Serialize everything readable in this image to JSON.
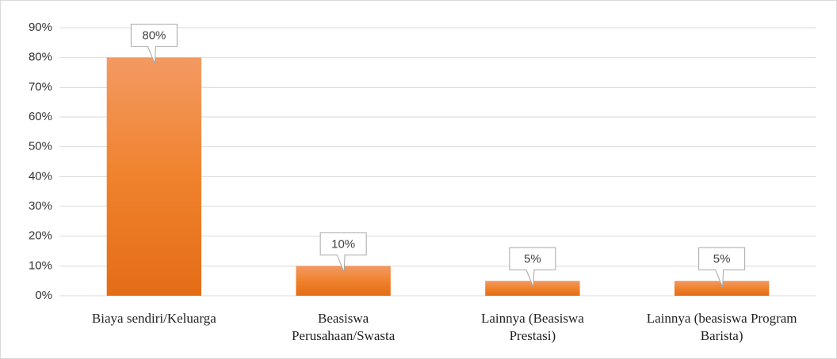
{
  "chart_data": {
    "type": "bar",
    "categories": [
      "Biaya sendiri/Keluarga",
      "Beasiswa Perusahaan/Swasta",
      "Lainnya (Beasiswa Prestasi)",
      "Lainnya (beasiswa Program Barista)"
    ],
    "values": [
      80,
      10,
      5,
      5
    ],
    "value_labels": [
      "80%",
      "10%",
      "5%",
      "5%"
    ],
    "color": "#ed7d31",
    "ylim": [
      0,
      90
    ],
    "yticks": [
      {
        "value": 0,
        "label": "0%"
      },
      {
        "value": 10,
        "label": "10%"
      },
      {
        "value": 20,
        "label": "20%"
      },
      {
        "value": 30,
        "label": "30%"
      },
      {
        "value": 40,
        "label": "40%"
      },
      {
        "value": 50,
        "label": "50%"
      },
      {
        "value": 60,
        "label": "60%"
      },
      {
        "value": 70,
        "label": "70%"
      },
      {
        "value": 80,
        "label": "80%"
      },
      {
        "value": 90,
        "label": "90%"
      }
    ],
    "grid": true
  }
}
